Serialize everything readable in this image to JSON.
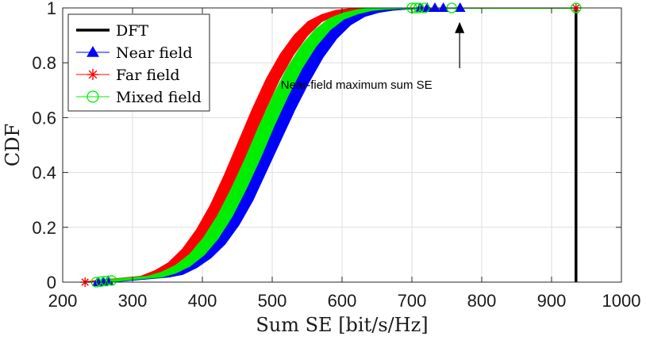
{
  "chart_data": {
    "type": "line",
    "title": "",
    "xlabel": "Sum SE [bit/s/Hz]",
    "ylabel": "CDF",
    "xlim": [
      200,
      1000
    ],
    "ylim": [
      0,
      1
    ],
    "xticks": [
      200,
      300,
      400,
      500,
      600,
      700,
      800,
      900,
      1000
    ],
    "yticks": [
      0,
      0.2,
      0.4,
      0.6,
      0.8,
      1
    ],
    "ytick_labels": [
      "0",
      "0.2",
      "0.4",
      "0.6",
      "0.8",
      "1"
    ],
    "grid": true,
    "legend_position": "top-left",
    "series": [
      {
        "name": "DFT",
        "color": "#000000",
        "marker": "none",
        "x": [
          935,
          935
        ],
        "y": [
          0,
          1
        ]
      },
      {
        "name": "Near field",
        "color": "#0000ff",
        "marker": "triangle",
        "x": [
          250,
          300,
          340,
          360,
          380,
          400,
          420,
          440,
          460,
          480,
          500,
          520,
          540,
          560,
          580,
          600,
          620,
          640,
          660,
          680,
          700,
          720,
          740,
          769
        ],
        "y": [
          0.0,
          0.012,
          0.02,
          0.03,
          0.055,
          0.09,
          0.14,
          0.21,
          0.3,
          0.41,
          0.52,
          0.63,
          0.73,
          0.82,
          0.89,
          0.94,
          0.97,
          0.985,
          0.993,
          0.997,
          0.999,
          1.0,
          1.0,
          1.0
        ],
        "x_band_lo": [
          250,
          290,
          330,
          350,
          370,
          390,
          410,
          430,
          450,
          470,
          490,
          510,
          530,
          550,
          570,
          590,
          610,
          630,
          650,
          670,
          690,
          710,
          730,
          760
        ],
        "x_band_hi": [
          262,
          315,
          352,
          372,
          392,
          412,
          432,
          452,
          472,
          492,
          512,
          532,
          552,
          572,
          592,
          612,
          632,
          652,
          672,
          692,
          712,
          730,
          750,
          769
        ]
      },
      {
        "name": "Far field",
        "color": "#ff0000",
        "marker": "asterisk",
        "x": [
          232,
          280,
          320,
          340,
          360,
          380,
          400,
          420,
          440,
          460,
          480,
          500,
          520,
          540,
          560,
          580,
          600,
          620,
          640,
          660,
          935
        ],
        "y": [
          0.0,
          0.01,
          0.02,
          0.04,
          0.07,
          0.12,
          0.19,
          0.28,
          0.39,
          0.51,
          0.63,
          0.74,
          0.83,
          0.9,
          0.95,
          0.975,
          0.99,
          0.996,
          0.999,
          1.0,
          1.0
        ],
        "x_band_lo": [
          232,
          272,
          312,
          332,
          352,
          372,
          392,
          412,
          432,
          452,
          472,
          492,
          512,
          532,
          552,
          572,
          592,
          612,
          632,
          652,
          935
        ],
        "x_band_hi": [
          240,
          288,
          330,
          350,
          370,
          390,
          410,
          430,
          450,
          470,
          490,
          510,
          530,
          550,
          570,
          590,
          610,
          630,
          650,
          670,
          935
        ]
      },
      {
        "name": "Mixed field",
        "color": "#00ee00",
        "marker": "circle",
        "x": [
          248,
          290,
          330,
          350,
          370,
          390,
          410,
          430,
          450,
          470,
          490,
          510,
          530,
          550,
          570,
          590,
          610,
          630,
          650,
          670,
          700,
          757,
          935
        ],
        "y": [
          0.0,
          0.011,
          0.02,
          0.035,
          0.06,
          0.1,
          0.16,
          0.24,
          0.34,
          0.45,
          0.57,
          0.68,
          0.78,
          0.86,
          0.92,
          0.96,
          0.98,
          0.992,
          0.997,
          0.999,
          1.0,
          1.0,
          1.0
        ],
        "x_band_lo": [
          248,
          282,
          322,
          342,
          362,
          382,
          402,
          422,
          442,
          462,
          482,
          502,
          522,
          542,
          562,
          582,
          602,
          622,
          642,
          662,
          692,
          750,
          935
        ],
        "x_band_hi": [
          260,
          300,
          342,
          362,
          382,
          402,
          422,
          442,
          462,
          482,
          502,
          522,
          542,
          562,
          582,
          602,
          622,
          642,
          662,
          682,
          712,
          757,
          935
        ]
      }
    ],
    "annotations": [
      {
        "text": "Near-field maximum sum SE",
        "target_x": 757,
        "target_y": 0.995,
        "label_x": 740,
        "label_y": 0.705
      }
    ]
  }
}
